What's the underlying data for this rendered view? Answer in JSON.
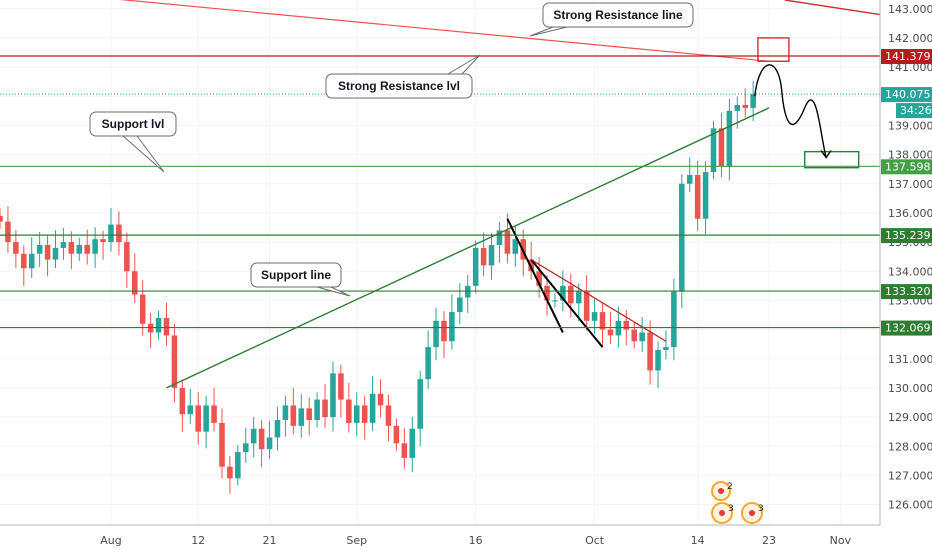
{
  "chart_data": {
    "type": "candlestick",
    "title": "",
    "xlabel": "",
    "ylabel": "",
    "ylim": [
      125.3,
      143.3
    ],
    "y_ticks": [
      126,
      127,
      128,
      129,
      130,
      131,
      132,
      133,
      134,
      135,
      136,
      137,
      138,
      139,
      140,
      141,
      142,
      143
    ],
    "y_tick_labels": [
      "126.000",
      "127.000",
      "128.000",
      "129.000",
      "130.000",
      "131.000",
      "132.000",
      "133.000",
      "134.000",
      "135.000",
      "136.000",
      "137.000",
      "138.000",
      "139.000",
      "140.000",
      "141.000",
      "142.000",
      "143.000"
    ],
    "x_ticks": [
      {
        "label": "Aug",
        "day": 0
      },
      {
        "label": "12",
        "day": 11
      },
      {
        "label": "21",
        "day": 20
      },
      {
        "label": "Sep",
        "day": 31
      },
      {
        "label": "16",
        "day": 46
      },
      {
        "label": "Oct",
        "day": 61
      },
      {
        "label": "14",
        "day": 74
      },
      {
        "label": "23",
        "day": 83
      },
      {
        "label": "Nov",
        "day": 92
      }
    ],
    "xlim": [
      -14,
      97
    ],
    "series": [
      {
        "name": "",
        "type": "candlestick",
        "points": [
          [
            -14,
            135.7
          ],
          [
            -13,
            135.0
          ],
          [
            -12,
            134.6
          ],
          [
            -11,
            134.1
          ],
          [
            -10,
            134.6
          ],
          [
            -9,
            134.9
          ],
          [
            -8,
            134.4
          ],
          [
            -7,
            134.8
          ],
          [
            -6,
            135.0
          ],
          [
            -5,
            134.6
          ],
          [
            -4,
            134.9
          ],
          [
            -3,
            134.6
          ],
          [
            -2,
            135.1
          ],
          [
            -1,
            135.0
          ],
          [
            0,
            135.6
          ],
          [
            1,
            135.0
          ],
          [
            2,
            134.0
          ],
          [
            3,
            133.2
          ],
          [
            4,
            132.2
          ],
          [
            5,
            131.9
          ],
          [
            6,
            132.4
          ],
          [
            7,
            131.8
          ],
          [
            8,
            130.0
          ],
          [
            9,
            129.1
          ],
          [
            10,
            129.4
          ],
          [
            11,
            128.5
          ],
          [
            12,
            129.4
          ],
          [
            13,
            128.8
          ],
          [
            14,
            127.3
          ],
          [
            15,
            126.9
          ],
          [
            16,
            127.8
          ],
          [
            17,
            128.1
          ],
          [
            18,
            128.6
          ],
          [
            19,
            127.9
          ],
          [
            20,
            128.3
          ],
          [
            21,
            128.9
          ],
          [
            22,
            129.4
          ],
          [
            23,
            128.7
          ],
          [
            24,
            129.3
          ],
          [
            25,
            128.9
          ],
          [
            26,
            129.6
          ],
          [
            27,
            129.0
          ],
          [
            28,
            130.5
          ],
          [
            29,
            129.6
          ],
          [
            30,
            128.8
          ],
          [
            31,
            129.4
          ],
          [
            32,
            128.8
          ],
          [
            33,
            129.8
          ],
          [
            34,
            129.4
          ],
          [
            35,
            128.7
          ],
          [
            36,
            128.1
          ],
          [
            37,
            127.6
          ],
          [
            38,
            128.6
          ],
          [
            39,
            130.3
          ],
          [
            40,
            131.4
          ],
          [
            41,
            132.3
          ],
          [
            42,
            131.6
          ],
          [
            43,
            132.6
          ],
          [
            44,
            133.1
          ],
          [
            45,
            133.5
          ],
          [
            46,
            134.8
          ],
          [
            47,
            134.2
          ],
          [
            48,
            134.9
          ],
          [
            49,
            135.4
          ],
          [
            50,
            134.6
          ],
          [
            51,
            135.1
          ],
          [
            52,
            134.4
          ],
          [
            53,
            134.0
          ],
          [
            54,
            133.5
          ],
          [
            55,
            133.0
          ],
          [
            56,
            133.0
          ],
          [
            57,
            133.5
          ],
          [
            58,
            132.9
          ],
          [
            59,
            133.3
          ],
          [
            60,
            132.3
          ],
          [
            61,
            132.6
          ],
          [
            62,
            132.0
          ],
          [
            63,
            131.8
          ],
          [
            64,
            132.3
          ],
          [
            65,
            132.0
          ],
          [
            66,
            131.6
          ],
          [
            67,
            131.9
          ],
          [
            68,
            130.6
          ],
          [
            69,
            131.3
          ],
          [
            70,
            131.4
          ],
          [
            71,
            133.3
          ],
          [
            72,
            137.0
          ],
          [
            73,
            137.3
          ],
          [
            74,
            135.8
          ],
          [
            75,
            137.4
          ],
          [
            76,
            138.9
          ],
          [
            77,
            137.6
          ],
          [
            78,
            139.5
          ],
          [
            79,
            139.7
          ],
          [
            80,
            139.6
          ],
          [
            81,
            140.08
          ]
        ]
      }
    ],
    "horizontal_levels": [
      {
        "value": 141.379,
        "label": "141.379",
        "color": "#b71c1c"
      },
      {
        "value": 140.075,
        "label": "140.075",
        "color": "#26a69a",
        "countdown": "34:26"
      },
      {
        "value": 137.598,
        "label": "137.598",
        "color": "#43a047"
      },
      {
        "value": 135.239,
        "label": "135.239",
        "color": "#2e7d32"
      },
      {
        "value": 133.32,
        "label": "133.320",
        "color": "#2e7d32"
      },
      {
        "value": 132.069,
        "label": "132.069",
        "color": "#2e7d32"
      }
    ],
    "annotations": [
      {
        "text": "Strong Resistance line"
      },
      {
        "text": "Strong Resistance lvl"
      },
      {
        "text": "Support lvl"
      },
      {
        "text": "Support line"
      }
    ],
    "events": [
      {
        "count": "2"
      },
      {
        "count": "3"
      },
      {
        "count": "3"
      }
    ],
    "grid": true,
    "legend": "none"
  }
}
